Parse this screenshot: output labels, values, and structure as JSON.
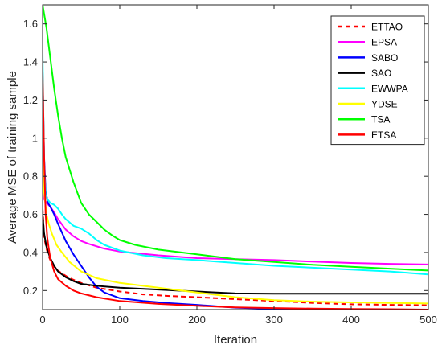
{
  "chart_data": {
    "type": "line",
    "title": "",
    "xlabel": "Iteration",
    "ylabel": "Average MSE of training sample",
    "xlim": [
      0,
      500
    ],
    "ylim": [
      0.1,
      1.7
    ],
    "xticks": [
      0,
      100,
      200,
      300,
      400,
      500
    ],
    "yticks": [
      0.2,
      0.4,
      0.6,
      0.8,
      1,
      1.2,
      1.4,
      1.6
    ],
    "grid": false,
    "legend_position": "top-right",
    "series": [
      {
        "name": "ETTAO",
        "color": "#ff0000",
        "dash": true,
        "x": [
          0,
          2,
          5,
          8,
          12,
          18,
          25,
          35,
          50,
          70,
          100,
          130,
          160,
          200,
          250,
          300,
          350,
          400,
          450,
          500
        ],
        "y": [
          0.63,
          0.48,
          0.42,
          0.38,
          0.34,
          0.31,
          0.29,
          0.265,
          0.24,
          0.215,
          0.195,
          0.18,
          0.172,
          0.165,
          0.155,
          0.145,
          0.135,
          0.128,
          0.125,
          0.123
        ]
      },
      {
        "name": "EPSA",
        "color": "#ff00ff",
        "dash": false,
        "x": [
          0,
          2,
          5,
          10,
          15,
          20,
          30,
          40,
          50,
          60,
          80,
          100,
          150,
          200,
          250,
          300,
          350,
          400,
          450,
          500
        ],
        "y": [
          0.75,
          0.68,
          0.66,
          0.64,
          0.61,
          0.575,
          0.52,
          0.485,
          0.46,
          0.445,
          0.42,
          0.405,
          0.385,
          0.37,
          0.365,
          0.36,
          0.352,
          0.345,
          0.34,
          0.337
        ]
      },
      {
        "name": "SABO",
        "color": "#0000ff",
        "dash": false,
        "x": [
          0,
          2,
          4,
          7,
          10,
          15,
          20,
          30,
          40,
          50,
          60,
          70,
          80,
          100,
          130,
          160,
          200,
          250,
          300,
          340
        ],
        "y": [
          1.35,
          0.9,
          0.72,
          0.66,
          0.64,
          0.6,
          0.55,
          0.46,
          0.39,
          0.33,
          0.27,
          0.22,
          0.19,
          0.16,
          0.145,
          0.135,
          0.125,
          0.11,
          0.104,
          0.1
        ]
      },
      {
        "name": "SAO",
        "color": "#000000",
        "dash": false,
        "x": [
          0,
          2,
          5,
          10,
          15,
          20,
          30,
          40,
          50,
          70,
          100,
          150,
          200,
          250,
          300,
          350,
          400,
          450,
          500
        ],
        "y": [
          0.6,
          0.5,
          0.43,
          0.37,
          0.33,
          0.3,
          0.27,
          0.25,
          0.235,
          0.225,
          0.215,
          0.205,
          0.195,
          0.185,
          0.183,
          0.183,
          0.183,
          0.183,
          0.183
        ]
      },
      {
        "name": "EWWPA",
        "color": "#00ffff",
        "dash": false,
        "x": [
          0,
          2,
          4,
          6,
          10,
          15,
          20,
          25,
          30,
          40,
          50,
          60,
          70,
          80,
          100,
          130,
          160,
          200,
          250,
          300,
          350,
          400,
          450,
          500
        ],
        "y": [
          1.45,
          0.85,
          0.7,
          0.68,
          0.66,
          0.65,
          0.63,
          0.6,
          0.575,
          0.54,
          0.525,
          0.5,
          0.465,
          0.44,
          0.41,
          0.385,
          0.37,
          0.36,
          0.345,
          0.33,
          0.32,
          0.31,
          0.3,
          0.285
        ]
      },
      {
        "name": "YDSE",
        "color": "#ffff00",
        "dash": false,
        "x": [
          0,
          2,
          5,
          8,
          12,
          18,
          25,
          35,
          50,
          70,
          100,
          150,
          200,
          250,
          300,
          350,
          400,
          450,
          500
        ],
        "y": [
          1.0,
          0.72,
          0.6,
          0.55,
          0.5,
          0.44,
          0.4,
          0.35,
          0.3,
          0.265,
          0.24,
          0.215,
          0.19,
          0.165,
          0.15,
          0.142,
          0.138,
          0.135,
          0.132
        ]
      },
      {
        "name": "TSA",
        "color": "#00ff00",
        "dash": false,
        "x": [
          0,
          5,
          10,
          15,
          20,
          25,
          30,
          40,
          50,
          60,
          70,
          80,
          90,
          100,
          120,
          150,
          200,
          250,
          300,
          350,
          400,
          450,
          500
        ],
        "y": [
          1.7,
          1.58,
          1.42,
          1.26,
          1.12,
          1.0,
          0.9,
          0.77,
          0.66,
          0.6,
          0.56,
          0.52,
          0.49,
          0.465,
          0.44,
          0.415,
          0.39,
          0.365,
          0.35,
          0.335,
          0.325,
          0.315,
          0.305
        ]
      },
      {
        "name": "ETSA",
        "color": "#ff0000",
        "dash": false,
        "x": [
          0,
          2,
          4,
          6,
          8,
          10,
          15,
          20,
          30,
          40,
          50,
          70,
          100,
          150,
          200,
          250,
          300,
          350,
          400,
          450,
          500
        ],
        "y": [
          1.35,
          0.9,
          0.6,
          0.48,
          0.42,
          0.37,
          0.3,
          0.26,
          0.225,
          0.2,
          0.185,
          0.165,
          0.145,
          0.13,
          0.12,
          0.112,
          0.108,
          0.105,
          0.103,
          0.102,
          0.1
        ]
      }
    ]
  }
}
